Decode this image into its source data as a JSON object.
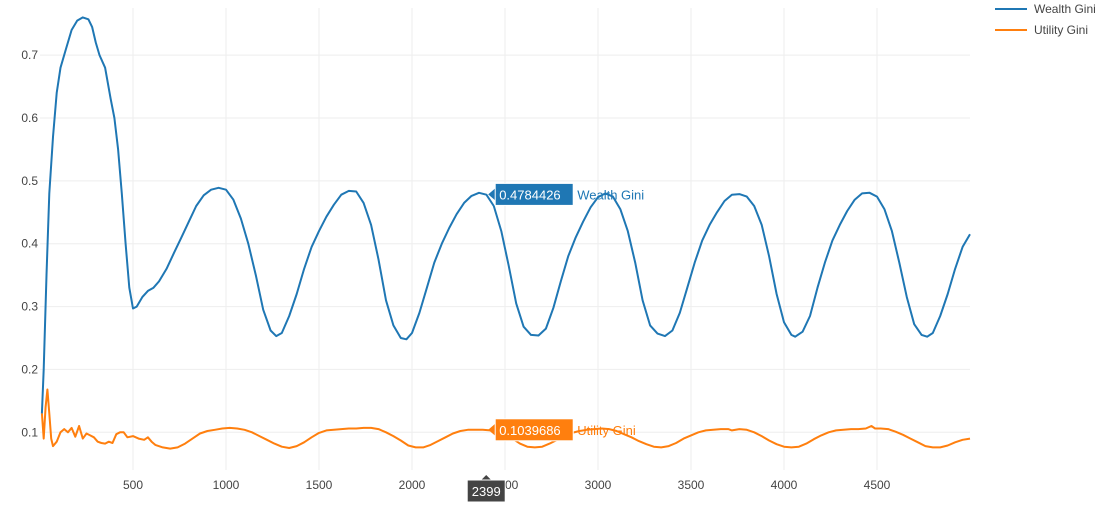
{
  "chart_data": {
    "type": "line",
    "xlim": [
      0,
      5000
    ],
    "ylim": [
      0.04,
      0.775
    ],
    "xticks": [
      500,
      1000,
      1500,
      2000,
      2500,
      3000,
      3500,
      4000,
      4500
    ],
    "yticks": [
      0.1,
      0.2,
      0.3,
      0.4,
      0.5,
      0.6,
      0.7
    ],
    "grid": true,
    "legend_position": "top-right",
    "series": [
      {
        "name": "Wealth Gini",
        "color": "#1f77b4",
        "points": [
          [
            10,
            0.13
          ],
          [
            20,
            0.2
          ],
          [
            35,
            0.35
          ],
          [
            50,
            0.48
          ],
          [
            70,
            0.57
          ],
          [
            90,
            0.64
          ],
          [
            110,
            0.68
          ],
          [
            140,
            0.71
          ],
          [
            170,
            0.74
          ],
          [
            200,
            0.755
          ],
          [
            230,
            0.76
          ],
          [
            260,
            0.757
          ],
          [
            280,
            0.745
          ],
          [
            300,
            0.72
          ],
          [
            320,
            0.7
          ],
          [
            350,
            0.68
          ],
          [
            380,
            0.63
          ],
          [
            400,
            0.6
          ],
          [
            420,
            0.55
          ],
          [
            440,
            0.48
          ],
          [
            460,
            0.4
          ],
          [
            480,
            0.33
          ],
          [
            500,
            0.297
          ],
          [
            520,
            0.3
          ],
          [
            550,
            0.315
          ],
          [
            580,
            0.325
          ],
          [
            610,
            0.33
          ],
          [
            640,
            0.34
          ],
          [
            680,
            0.36
          ],
          [
            720,
            0.385
          ],
          [
            760,
            0.41
          ],
          [
            800,
            0.435
          ],
          [
            840,
            0.46
          ],
          [
            880,
            0.477
          ],
          [
            920,
            0.486
          ],
          [
            960,
            0.489
          ],
          [
            1000,
            0.486
          ],
          [
            1040,
            0.47
          ],
          [
            1080,
            0.44
          ],
          [
            1120,
            0.4
          ],
          [
            1160,
            0.35
          ],
          [
            1200,
            0.295
          ],
          [
            1240,
            0.262
          ],
          [
            1270,
            0.253
          ],
          [
            1300,
            0.258
          ],
          [
            1340,
            0.285
          ],
          [
            1380,
            0.32
          ],
          [
            1420,
            0.36
          ],
          [
            1460,
            0.395
          ],
          [
            1500,
            0.42
          ],
          [
            1540,
            0.443
          ],
          [
            1580,
            0.462
          ],
          [
            1620,
            0.478
          ],
          [
            1660,
            0.484
          ],
          [
            1700,
            0.483
          ],
          [
            1740,
            0.465
          ],
          [
            1780,
            0.43
          ],
          [
            1820,
            0.375
          ],
          [
            1860,
            0.31
          ],
          [
            1900,
            0.27
          ],
          [
            1940,
            0.25
          ],
          [
            1970,
            0.248
          ],
          [
            2000,
            0.258
          ],
          [
            2040,
            0.29
          ],
          [
            2080,
            0.33
          ],
          [
            2120,
            0.37
          ],
          [
            2160,
            0.4
          ],
          [
            2200,
            0.425
          ],
          [
            2240,
            0.447
          ],
          [
            2280,
            0.465
          ],
          [
            2320,
            0.476
          ],
          [
            2360,
            0.481
          ],
          [
            2400,
            0.478
          ],
          [
            2440,
            0.46
          ],
          [
            2480,
            0.42
          ],
          [
            2520,
            0.365
          ],
          [
            2560,
            0.305
          ],
          [
            2600,
            0.268
          ],
          [
            2640,
            0.255
          ],
          [
            2680,
            0.254
          ],
          [
            2720,
            0.265
          ],
          [
            2760,
            0.298
          ],
          [
            2800,
            0.34
          ],
          [
            2840,
            0.38
          ],
          [
            2880,
            0.41
          ],
          [
            2920,
            0.435
          ],
          [
            2960,
            0.458
          ],
          [
            3000,
            0.474
          ],
          [
            3040,
            0.48
          ],
          [
            3080,
            0.475
          ],
          [
            3120,
            0.455
          ],
          [
            3160,
            0.42
          ],
          [
            3200,
            0.37
          ],
          [
            3240,
            0.31
          ],
          [
            3280,
            0.27
          ],
          [
            3320,
            0.257
          ],
          [
            3360,
            0.253
          ],
          [
            3400,
            0.262
          ],
          [
            3440,
            0.29
          ],
          [
            3480,
            0.33
          ],
          [
            3520,
            0.37
          ],
          [
            3560,
            0.405
          ],
          [
            3600,
            0.43
          ],
          [
            3640,
            0.45
          ],
          [
            3680,
            0.468
          ],
          [
            3720,
            0.478
          ],
          [
            3760,
            0.479
          ],
          [
            3800,
            0.475
          ],
          [
            3840,
            0.46
          ],
          [
            3880,
            0.43
          ],
          [
            3920,
            0.38
          ],
          [
            3960,
            0.32
          ],
          [
            4000,
            0.275
          ],
          [
            4040,
            0.255
          ],
          [
            4060,
            0.252
          ],
          [
            4100,
            0.26
          ],
          [
            4140,
            0.285
          ],
          [
            4180,
            0.33
          ],
          [
            4220,
            0.37
          ],
          [
            4260,
            0.405
          ],
          [
            4300,
            0.43
          ],
          [
            4340,
            0.452
          ],
          [
            4380,
            0.47
          ],
          [
            4420,
            0.48
          ],
          [
            4460,
            0.481
          ],
          [
            4500,
            0.475
          ],
          [
            4540,
            0.455
          ],
          [
            4580,
            0.42
          ],
          [
            4620,
            0.37
          ],
          [
            4660,
            0.315
          ],
          [
            4700,
            0.272
          ],
          [
            4740,
            0.255
          ],
          [
            4770,
            0.252
          ],
          [
            4800,
            0.258
          ],
          [
            4840,
            0.285
          ],
          [
            4880,
            0.32
          ],
          [
            4920,
            0.36
          ],
          [
            4960,
            0.395
          ],
          [
            5000,
            0.415
          ]
        ]
      },
      {
        "name": "Utility Gini",
        "color": "#ff7f0e",
        "points": [
          [
            10,
            0.13
          ],
          [
            20,
            0.09
          ],
          [
            30,
            0.14
          ],
          [
            40,
            0.168
          ],
          [
            50,
            0.13
          ],
          [
            60,
            0.09
          ],
          [
            70,
            0.078
          ],
          [
            90,
            0.085
          ],
          [
            110,
            0.1
          ],
          [
            130,
            0.105
          ],
          [
            150,
            0.1
          ],
          [
            170,
            0.107
          ],
          [
            190,
            0.093
          ],
          [
            210,
            0.11
          ],
          [
            230,
            0.09
          ],
          [
            250,
            0.098
          ],
          [
            270,
            0.095
          ],
          [
            290,
            0.092
          ],
          [
            310,
            0.085
          ],
          [
            330,
            0.083
          ],
          [
            350,
            0.082
          ],
          [
            370,
            0.085
          ],
          [
            390,
            0.083
          ],
          [
            410,
            0.097
          ],
          [
            430,
            0.1
          ],
          [
            450,
            0.1
          ],
          [
            470,
            0.092
          ],
          [
            500,
            0.094
          ],
          [
            530,
            0.09
          ],
          [
            560,
            0.088
          ],
          [
            580,
            0.092
          ],
          [
            600,
            0.085
          ],
          [
            620,
            0.08
          ],
          [
            660,
            0.076
          ],
          [
            700,
            0.074
          ],
          [
            740,
            0.076
          ],
          [
            780,
            0.082
          ],
          [
            820,
            0.09
          ],
          [
            860,
            0.098
          ],
          [
            900,
            0.102
          ],
          [
            940,
            0.104
          ],
          [
            980,
            0.106
          ],
          [
            1020,
            0.107
          ],
          [
            1060,
            0.106
          ],
          [
            1100,
            0.104
          ],
          [
            1140,
            0.1
          ],
          [
            1180,
            0.094
          ],
          [
            1220,
            0.088
          ],
          [
            1260,
            0.082
          ],
          [
            1300,
            0.077
          ],
          [
            1340,
            0.075
          ],
          [
            1380,
            0.078
          ],
          [
            1420,
            0.084
          ],
          [
            1460,
            0.092
          ],
          [
            1500,
            0.099
          ],
          [
            1540,
            0.103
          ],
          [
            1580,
            0.104
          ],
          [
            1620,
            0.105
          ],
          [
            1660,
            0.106
          ],
          [
            1700,
            0.106
          ],
          [
            1740,
            0.107
          ],
          [
            1780,
            0.107
          ],
          [
            1820,
            0.105
          ],
          [
            1860,
            0.1
          ],
          [
            1900,
            0.094
          ],
          [
            1940,
            0.087
          ],
          [
            1980,
            0.079
          ],
          [
            2020,
            0.076
          ],
          [
            2060,
            0.076
          ],
          [
            2100,
            0.08
          ],
          [
            2140,
            0.086
          ],
          [
            2180,
            0.092
          ],
          [
            2220,
            0.098
          ],
          [
            2260,
            0.102
          ],
          [
            2300,
            0.104
          ],
          [
            2340,
            0.104
          ],
          [
            2380,
            0.104
          ],
          [
            2420,
            0.103
          ],
          [
            2460,
            0.1
          ],
          [
            2500,
            0.096
          ],
          [
            2540,
            0.09
          ],
          [
            2580,
            0.082
          ],
          [
            2620,
            0.077
          ],
          [
            2660,
            0.076
          ],
          [
            2700,
            0.077
          ],
          [
            2740,
            0.082
          ],
          [
            2780,
            0.088
          ],
          [
            2820,
            0.094
          ],
          [
            2860,
            0.099
          ],
          [
            2900,
            0.102
          ],
          [
            2940,
            0.104
          ],
          [
            2980,
            0.105
          ],
          [
            3020,
            0.106
          ],
          [
            3060,
            0.105
          ],
          [
            3100,
            0.102
          ],
          [
            3140,
            0.097
          ],
          [
            3180,
            0.092
          ],
          [
            3220,
            0.086
          ],
          [
            3260,
            0.081
          ],
          [
            3300,
            0.077
          ],
          [
            3340,
            0.076
          ],
          [
            3380,
            0.078
          ],
          [
            3420,
            0.083
          ],
          [
            3460,
            0.09
          ],
          [
            3500,
            0.095
          ],
          [
            3540,
            0.1
          ],
          [
            3580,
            0.103
          ],
          [
            3620,
            0.104
          ],
          [
            3660,
            0.105
          ],
          [
            3700,
            0.105
          ],
          [
            3720,
            0.103
          ],
          [
            3760,
            0.105
          ],
          [
            3800,
            0.104
          ],
          [
            3840,
            0.1
          ],
          [
            3880,
            0.094
          ],
          [
            3920,
            0.087
          ],
          [
            3960,
            0.081
          ],
          [
            4000,
            0.077
          ],
          [
            4040,
            0.076
          ],
          [
            4080,
            0.077
          ],
          [
            4120,
            0.082
          ],
          [
            4160,
            0.089
          ],
          [
            4200,
            0.095
          ],
          [
            4240,
            0.1
          ],
          [
            4280,
            0.103
          ],
          [
            4320,
            0.104
          ],
          [
            4360,
            0.105
          ],
          [
            4400,
            0.105
          ],
          [
            4440,
            0.106
          ],
          [
            4470,
            0.11
          ],
          [
            4490,
            0.106
          ],
          [
            4520,
            0.106
          ],
          [
            4560,
            0.105
          ],
          [
            4600,
            0.101
          ],
          [
            4640,
            0.096
          ],
          [
            4680,
            0.09
          ],
          [
            4720,
            0.084
          ],
          [
            4760,
            0.078
          ],
          [
            4800,
            0.076
          ],
          [
            4840,
            0.076
          ],
          [
            4880,
            0.079
          ],
          [
            4920,
            0.084
          ],
          [
            4960,
            0.088
          ],
          [
            5000,
            0.09
          ]
        ]
      }
    ],
    "hover": {
      "x_label": "2399",
      "items": [
        {
          "series": "Wealth Gini",
          "value": "0.4784426",
          "name": "Wealth Gini",
          "x": 2399,
          "y": 0.4784426,
          "color": "#1f77b4"
        },
        {
          "series": "Utility Gini",
          "value": "0.1039686",
          "name": "Utility Gini",
          "x": 2399,
          "y": 0.1039686,
          "color": "#ff7f0e"
        }
      ]
    }
  }
}
